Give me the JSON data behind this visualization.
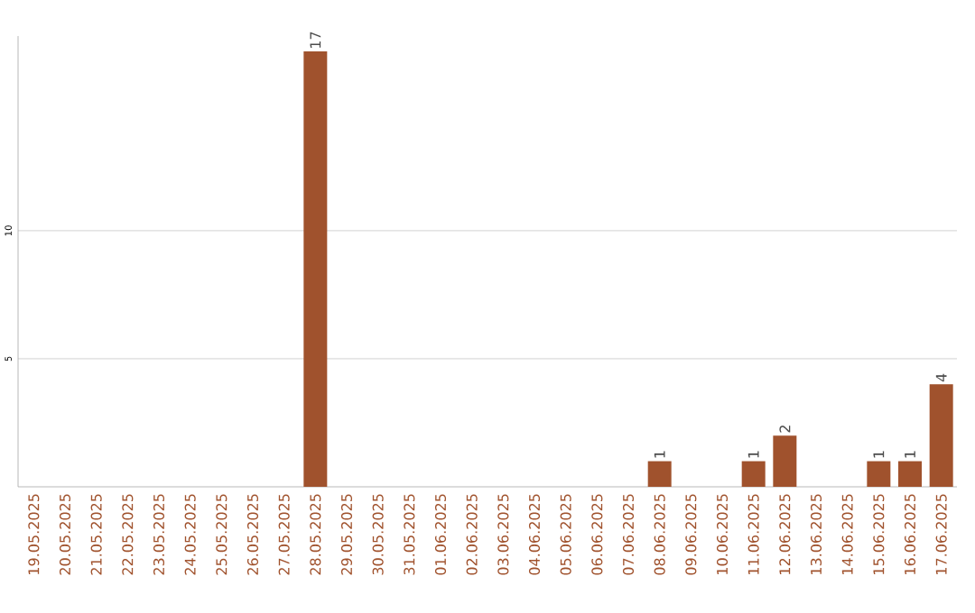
{
  "chart_data": {
    "type": "bar",
    "categories": [
      "19.05.2025",
      "20.05.2025",
      "21.05.2025",
      "22.05.2025",
      "23.05.2025",
      "24.05.2025",
      "25.05.2025",
      "26.05.2025",
      "27.05.2025",
      "28.05.2025",
      "29.05.2025",
      "30.05.2025",
      "31.05.2025",
      "01.06.2025",
      "02.06.2025",
      "03.06.2025",
      "04.06.2025",
      "05.06.2025",
      "06.06.2025",
      "07.06.2025",
      "08.06.2025",
      "09.06.2025",
      "10.06.2025",
      "11.06.2025",
      "12.06.2025",
      "13.06.2025",
      "14.06.2025",
      "15.06.2025",
      "16.06.2025",
      "17.06.2025"
    ],
    "values": [
      0,
      0,
      0,
      0,
      0,
      0,
      0,
      0,
      0,
      17,
      0,
      0,
      0,
      0,
      0,
      0,
      0,
      0,
      0,
      0,
      1,
      0,
      0,
      1,
      2,
      0,
      0,
      1,
      1,
      4
    ],
    "value_labels": [
      null,
      null,
      null,
      null,
      null,
      null,
      null,
      null,
      null,
      "17",
      null,
      null,
      null,
      null,
      null,
      null,
      null,
      null,
      null,
      null,
      "1",
      null,
      null,
      "1",
      "2",
      null,
      null,
      "1",
      "1",
      "4"
    ],
    "color": "#a0522d",
    "ylim": [
      0,
      17.6
    ],
    "yticks": [
      5,
      10
    ],
    "grid": "y"
  }
}
